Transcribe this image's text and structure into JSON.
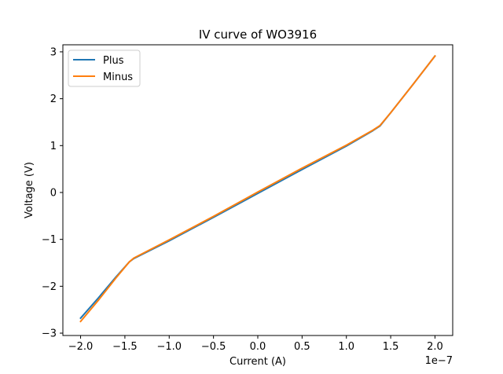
{
  "chart_data": {
    "type": "line",
    "title": "IV curve of WO3916",
    "xlabel": "Current (A)",
    "ylabel": "Voltage (V)",
    "x_offset_text": "1e−7",
    "xlim": [
      -2.2e-07,
      2.2e-07
    ],
    "ylim": [
      -3.05,
      3.15
    ],
    "x_ticks": [
      -2e-07,
      -1.5e-07,
      -1e-07,
      -5e-08,
      0,
      5e-08,
      1e-07,
      1.5e-07,
      2e-07
    ],
    "x_tick_labels": [
      "−2.0",
      "−1.5",
      "−1.0",
      "−0.5",
      "0.0",
      "0.5",
      "1.0",
      "1.5",
      "2.0"
    ],
    "y_ticks": [
      -3,
      -2,
      -1,
      0,
      1,
      2,
      3
    ],
    "y_tick_labels": [
      "−3",
      "−2",
      "−1",
      "0",
      "1",
      "2",
      "3"
    ],
    "grid": false,
    "legend": "top-left",
    "series": [
      {
        "name": "Plus",
        "color": "#1f77b4",
        "points": [
          [
            -2e-07,
            -2.68
          ],
          [
            -1.8e-07,
            -2.25
          ],
          [
            -1.6e-07,
            -1.8
          ],
          [
            -1.45e-07,
            -1.48
          ],
          [
            -1.4e-07,
            -1.41
          ],
          [
            -1e-07,
            -1.03
          ],
          [
            -5e-08,
            -0.53
          ],
          [
            0,
            -0.02
          ],
          [
            5e-08,
            0.49
          ],
          [
            1e-07,
            0.99
          ],
          [
            1.3e-07,
            1.32
          ],
          [
            1.38e-07,
            1.42
          ],
          [
            1.5e-07,
            1.7
          ],
          [
            1.75e-07,
            2.3
          ],
          [
            2e-07,
            2.91
          ]
        ]
      },
      {
        "name": "Minus",
        "color": "#ff7f0e",
        "points": [
          [
            -2e-07,
            -2.75
          ],
          [
            -1.8e-07,
            -2.3
          ],
          [
            -1.6e-07,
            -1.82
          ],
          [
            -1.45e-07,
            -1.48
          ],
          [
            -1.4e-07,
            -1.4
          ],
          [
            -1e-07,
            -1.01
          ],
          [
            -5e-08,
            -0.51
          ],
          [
            0,
            0.01
          ],
          [
            5e-08,
            0.52
          ],
          [
            1e-07,
            1.01
          ],
          [
            1.3e-07,
            1.33
          ],
          [
            1.38e-07,
            1.43
          ],
          [
            1.5e-07,
            1.7
          ],
          [
            1.75e-07,
            2.3
          ],
          [
            2e-07,
            2.91
          ]
        ]
      }
    ]
  }
}
